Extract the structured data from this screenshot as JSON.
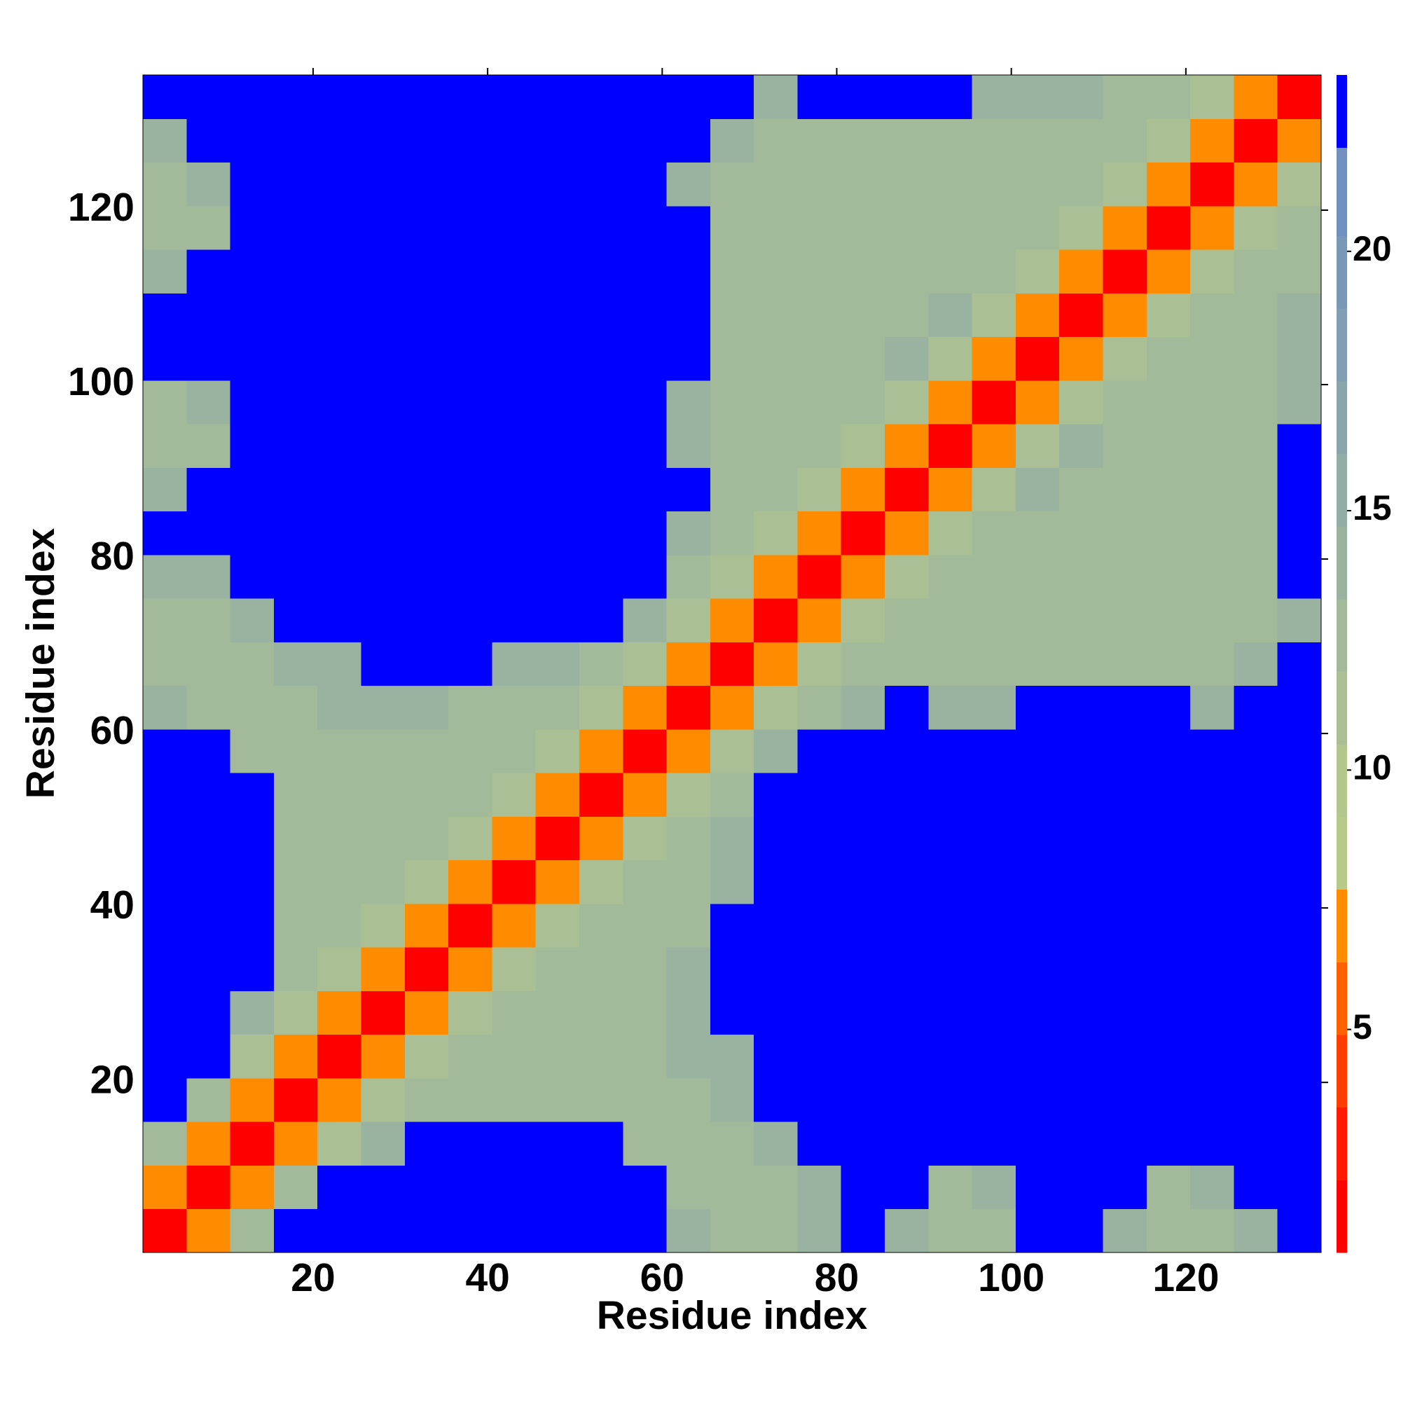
{
  "chart_data": {
    "type": "heatmap",
    "xlabel": "Residue index",
    "ylabel": "Residue index",
    "xbins": [
      0.5,
      5.5,
      10.5,
      15.5,
      20.5,
      25.5,
      30.5,
      35.5,
      40.5,
      45.5,
      50.5,
      55.5,
      60.5,
      65.5,
      70.5,
      75.5,
      80.5,
      85.5,
      90.5,
      95.5,
      100.5,
      105.5,
      110.5,
      115.5,
      120.5,
      125.5,
      130.5,
      135.5
    ],
    "ybins": [
      0.5,
      5.5,
      10.5,
      15.5,
      20.5,
      25.5,
      30.5,
      35.5,
      40.5,
      45.5,
      50.5,
      55.5,
      60.5,
      65.5,
      70.5,
      75.5,
      80.5,
      85.5,
      90.5,
      95.5,
      100.5,
      105.5,
      110.5,
      115.5,
      120.5,
      125.5,
      130.5,
      135.5
    ],
    "z": [
      [
        1,
        7,
        13,
        23,
        23,
        23,
        23,
        23,
        23,
        23,
        23,
        23,
        14,
        12,
        12,
        14,
        23,
        14,
        12,
        13,
        23,
        23,
        14,
        12,
        12,
        14,
        23
      ],
      [
        7,
        1,
        7,
        12,
        23,
        23,
        23,
        23,
        23,
        23,
        23,
        23,
        13,
        12,
        12,
        14,
        23,
        23,
        12,
        14,
        23,
        23,
        23,
        13,
        14,
        23,
        23
      ],
      [
        13,
        7,
        1,
        7,
        11,
        14,
        23,
        23,
        23,
        23,
        23,
        13,
        12,
        12,
        14,
        23,
        23,
        23,
        23,
        23,
        23,
        23,
        23,
        23,
        23,
        23,
        23
      ],
      [
        23,
        12,
        7,
        1,
        7,
        11,
        12,
        12,
        12,
        12,
        13,
        12,
        12,
        14,
        23,
        23,
        23,
        23,
        23,
        23,
        23,
        23,
        23,
        23,
        23,
        23,
        23
      ],
      [
        23,
        23,
        11,
        7,
        1,
        7,
        11,
        12,
        12,
        12,
        12,
        13,
        14,
        14,
        23,
        23,
        23,
        23,
        23,
        23,
        23,
        23,
        23,
        23,
        23,
        23,
        23
      ],
      [
        23,
        23,
        14,
        11,
        7,
        1,
        7,
        11,
        12,
        12,
        12,
        12,
        14,
        23,
        23,
        23,
        23,
        23,
        23,
        23,
        23,
        23,
        23,
        23,
        23,
        23,
        23
      ],
      [
        23,
        23,
        23,
        12,
        11,
        7,
        1,
        7,
        11,
        12,
        12,
        12,
        14,
        23,
        23,
        23,
        23,
        23,
        23,
        23,
        23,
        23,
        23,
        23,
        23,
        23,
        23
      ],
      [
        23,
        23,
        23,
        12,
        12,
        11,
        7,
        1,
        7,
        11,
        12,
        12,
        13,
        23,
        23,
        23,
        23,
        23,
        23,
        23,
        23,
        23,
        23,
        23,
        23,
        23,
        23
      ],
      [
        23,
        23,
        23,
        12,
        12,
        12,
        11,
        7,
        1,
        7,
        11,
        12,
        12,
        14,
        23,
        23,
        23,
        23,
        23,
        23,
        23,
        23,
        23,
        23,
        23,
        23,
        23
      ],
      [
        23,
        23,
        23,
        12,
        12,
        12,
        12,
        11,
        7,
        1,
        7,
        11,
        12,
        14,
        23,
        23,
        23,
        23,
        23,
        23,
        23,
        23,
        23,
        23,
        23,
        23,
        23
      ],
      [
        23,
        23,
        23,
        13,
        12,
        12,
        12,
        12,
        11,
        7,
        1,
        7,
        11,
        13,
        23,
        23,
        23,
        23,
        23,
        23,
        23,
        23,
        23,
        23,
        23,
        23,
        23
      ],
      [
        23,
        23,
        13,
        12,
        13,
        12,
        12,
        12,
        12,
        11,
        7,
        1,
        7,
        11,
        14,
        23,
        23,
        23,
        23,
        23,
        23,
        23,
        23,
        23,
        23,
        23,
        23
      ],
      [
        14,
        13,
        12,
        12,
        14,
        14,
        14,
        13,
        12,
        12,
        11,
        7,
        1,
        7,
        11,
        13,
        14,
        23,
        14,
        14,
        23,
        23,
        23,
        23,
        14,
        23,
        23
      ],
      [
        12,
        12,
        12,
        14,
        14,
        23,
        23,
        23,
        14,
        14,
        13,
        11,
        7,
        1,
        7,
        11,
        12,
        12,
        13,
        13,
        13,
        13,
        13,
        13,
        13,
        14,
        23
      ],
      [
        12,
        12,
        14,
        23,
        23,
        23,
        23,
        23,
        23,
        23,
        23,
        14,
        11,
        7,
        1,
        7,
        11,
        12,
        12,
        12,
        12,
        12,
        12,
        12,
        12,
        12,
        14
      ],
      [
        14,
        14,
        23,
        23,
        23,
        23,
        23,
        23,
        23,
        23,
        23,
        23,
        13,
        11,
        7,
        1,
        7,
        11,
        12,
        12,
        12,
        12,
        12,
        12,
        12,
        12,
        23
      ],
      [
        23,
        23,
        23,
        23,
        23,
        23,
        23,
        23,
        23,
        23,
        23,
        23,
        14,
        12,
        11,
        7,
        1,
        7,
        11,
        12,
        12,
        12,
        12,
        12,
        12,
        12,
        23
      ],
      [
        14,
        23,
        23,
        23,
        23,
        23,
        23,
        23,
        23,
        23,
        23,
        23,
        23,
        12,
        12,
        11,
        7,
        1,
        7,
        11,
        14,
        12,
        12,
        12,
        12,
        12,
        23
      ],
      [
        12,
        12,
        23,
        23,
        23,
        23,
        23,
        23,
        23,
        23,
        23,
        23,
        14,
        13,
        12,
        12,
        11,
        7,
        1,
        7,
        11,
        14,
        12,
        12,
        12,
        12,
        23
      ],
      [
        13,
        14,
        23,
        23,
        23,
        23,
        23,
        23,
        23,
        23,
        23,
        23,
        14,
        13,
        12,
        12,
        12,
        11,
        7,
        1,
        7,
        11,
        12,
        12,
        12,
        12,
        14
      ],
      [
        23,
        23,
        23,
        23,
        23,
        23,
        23,
        23,
        23,
        23,
        23,
        23,
        23,
        13,
        12,
        12,
        12,
        14,
        11,
        7,
        1,
        7,
        11,
        12,
        12,
        12,
        14
      ],
      [
        23,
        23,
        23,
        23,
        23,
        23,
        23,
        23,
        23,
        23,
        23,
        23,
        23,
        13,
        12,
        12,
        12,
        12,
        14,
        11,
        7,
        1,
        7,
        11,
        12,
        12,
        14
      ],
      [
        14,
        23,
        23,
        23,
        23,
        23,
        23,
        23,
        23,
        23,
        23,
        23,
        23,
        13,
        12,
        12,
        12,
        12,
        12,
        12,
        11,
        7,
        1,
        7,
        11,
        12,
        12
      ],
      [
        12,
        13,
        23,
        23,
        23,
        23,
        23,
        23,
        23,
        23,
        23,
        23,
        23,
        13,
        12,
        12,
        12,
        12,
        12,
        12,
        12,
        11,
        7,
        1,
        7,
        11,
        12
      ],
      [
        12,
        14,
        23,
        23,
        23,
        23,
        23,
        23,
        23,
        23,
        23,
        23,
        14,
        13,
        12,
        12,
        12,
        12,
        12,
        12,
        12,
        12,
        11,
        7,
        1,
        7,
        11
      ],
      [
        14,
        23,
        23,
        23,
        23,
        23,
        23,
        23,
        23,
        23,
        23,
        23,
        23,
        14,
        12,
        12,
        12,
        12,
        12,
        12,
        12,
        12,
        12,
        11,
        7,
        1,
        7
      ],
      [
        23,
        23,
        23,
        23,
        23,
        23,
        23,
        23,
        23,
        23,
        23,
        23,
        23,
        23,
        14,
        23,
        23,
        23,
        23,
        14,
        14,
        14,
        12,
        12,
        11,
        7,
        1
      ]
    ],
    "xlim": [
      0.5,
      135.5
    ],
    "ylim": [
      0.5,
      135.5
    ],
    "xticks": [
      20,
      40,
      60,
      80,
      100,
      120
    ],
    "yticks": [
      20,
      40,
      60,
      80,
      100,
      120
    ],
    "colorbar": {
      "lim": [
        0.7,
        23.4
      ],
      "ticks": [
        5,
        10,
        15,
        20
      ],
      "levels": [
        0.7,
        2.1,
        3.5,
        4.9,
        6.3,
        7.7,
        9.1,
        10.5,
        11.9,
        13.3,
        14.7,
        16.1,
        17.5,
        18.9,
        20.3,
        22.0,
        23.4
      ],
      "colors": [
        "#ff0000",
        "#ff1a00",
        "#ff3d00",
        "#ff6000",
        "#ff8c00",
        "#b8c98a",
        "#b2c68e",
        "#aac094",
        "#a2ba9a",
        "#9ab3a0",
        "#92aca6",
        "#8aa5ac",
        "#829eb2",
        "#7a97b8",
        "#7290be",
        "#0000ff"
      ]
    }
  }
}
